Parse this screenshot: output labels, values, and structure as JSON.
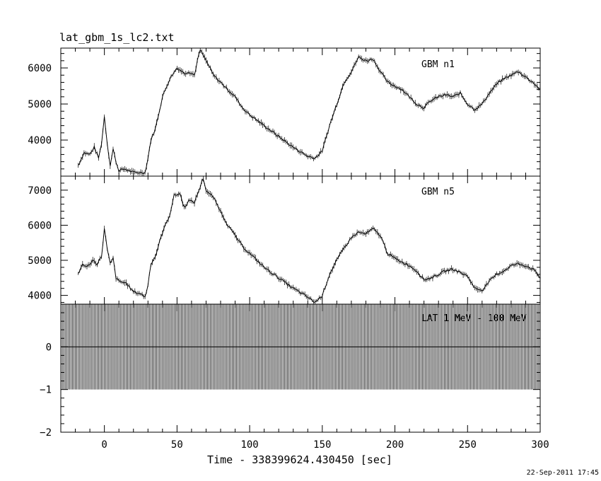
{
  "file_label": "lat_gbm_1s_lc2.txt",
  "footer_timestamp": "22-Sep-2011 17:45",
  "chart_data": [
    {
      "type": "line",
      "panel": "top",
      "annotation": "GBM n1",
      "xlim": [
        -30,
        300
      ],
      "ylim": [
        3000,
        6550
      ],
      "yticks_major": [
        4000,
        5000,
        6000
      ],
      "yticks_labels": [
        "4000",
        "5000",
        "6000"
      ],
      "series": [
        {
          "x": [
            -18,
            -14,
            -10,
            -7,
            -4,
            -2,
            0,
            2,
            4,
            6,
            8,
            10,
            14,
            20,
            25,
            28,
            30,
            32,
            35,
            40,
            45,
            50,
            52,
            55,
            58,
            62,
            64,
            66,
            68,
            70,
            72,
            75,
            80,
            85,
            90,
            95,
            100,
            110,
            120,
            130,
            140,
            145,
            150,
            155,
            160,
            165,
            170,
            175,
            180,
            185,
            190,
            195,
            200,
            205,
            210,
            215,
            220,
            225,
            230,
            235,
            240,
            245,
            250,
            255,
            260,
            265,
            270,
            275,
            280,
            285,
            290,
            295,
            300
          ],
          "y": [
            3300,
            3650,
            3600,
            3800,
            3500,
            3900,
            4650,
            3900,
            3300,
            3750,
            3400,
            3150,
            3200,
            3100,
            3100,
            3100,
            3500,
            4000,
            4300,
            5200,
            5700,
            6000,
            5950,
            5850,
            5900,
            5800,
            6200,
            6500,
            6350,
            6200,
            6050,
            5800,
            5600,
            5400,
            5200,
            4900,
            4700,
            4400,
            4100,
            3800,
            3550,
            3500,
            3700,
            4400,
            5000,
            5600,
            5900,
            6300,
            6200,
            6250,
            5900,
            5600,
            5500,
            5400,
            5200,
            5000,
            4900,
            5100,
            5200,
            5250,
            5200,
            5300,
            5000,
            4850,
            5000,
            5300,
            5550,
            5700,
            5800,
            5900,
            5750,
            5600,
            5400
          ]
        }
      ]
    },
    {
      "type": "line",
      "panel": "middle",
      "annotation": "GBM n5",
      "xlim": [
        -30,
        300
      ],
      "ylim": [
        3750,
        7400
      ],
      "yticks_major": [
        4000,
        5000,
        6000,
        7000
      ],
      "yticks_labels": [
        "4000",
        "5000",
        "6000",
        "7000"
      ],
      "series": [
        {
          "x": [
            -18,
            -15,
            -12,
            -8,
            -5,
            -2,
            0,
            2,
            4,
            6,
            8,
            10,
            15,
            20,
            25,
            28,
            30,
            32,
            35,
            40,
            45,
            48,
            52,
            55,
            58,
            62,
            66,
            68,
            70,
            72,
            75,
            80,
            85,
            90,
            95,
            100,
            110,
            120,
            130,
            140,
            145,
            150,
            155,
            160,
            165,
            170,
            175,
            180,
            185,
            190,
            195,
            200,
            205,
            210,
            215,
            220,
            225,
            230,
            235,
            240,
            245,
            250,
            255,
            260,
            265,
            270,
            275,
            280,
            285,
            290,
            295,
            300
          ],
          "y": [
            4600,
            4900,
            4800,
            5000,
            4900,
            5100,
            5900,
            5300,
            4900,
            5050,
            4500,
            4400,
            4350,
            4100,
            4050,
            3950,
            4300,
            4900,
            5100,
            5800,
            6300,
            6850,
            6900,
            6500,
            6700,
            6650,
            7100,
            7350,
            7000,
            6900,
            6800,
            6400,
            6000,
            5700,
            5400,
            5200,
            4800,
            4500,
            4200,
            3950,
            3800,
            4000,
            4600,
            5000,
            5350,
            5650,
            5800,
            5750,
            5900,
            5700,
            5200,
            5050,
            4950,
            4850,
            4700,
            4450,
            4500,
            4600,
            4700,
            4750,
            4650,
            4550,
            4200,
            4150,
            4400,
            4600,
            4700,
            4850,
            4900,
            4850,
            4750,
            4500
          ]
        }
      ]
    },
    {
      "type": "bar",
      "panel": "bottom",
      "annotation": "LAT 1 MeV - 100 MeV",
      "xlabel": "Time - 338399624.430450 [sec]",
      "xlim": [
        -30,
        300
      ],
      "xticks_major": [
        0,
        50,
        100,
        150,
        200,
        250,
        300
      ],
      "xticks_labels": [
        "0",
        "50",
        "100",
        "150",
        "200",
        "250",
        "300"
      ],
      "ylim": [
        -2,
        1
      ],
      "yticks_major": [
        -2,
        -1,
        0
      ],
      "yticks_labels": [
        "−2",
        "−1",
        "0"
      ],
      "baseline": 0,
      "bar_top": 1,
      "bar_bottom": -1,
      "bin_width_sec": 1,
      "note": "one error bar per 1 s bin across the full time range"
    }
  ]
}
